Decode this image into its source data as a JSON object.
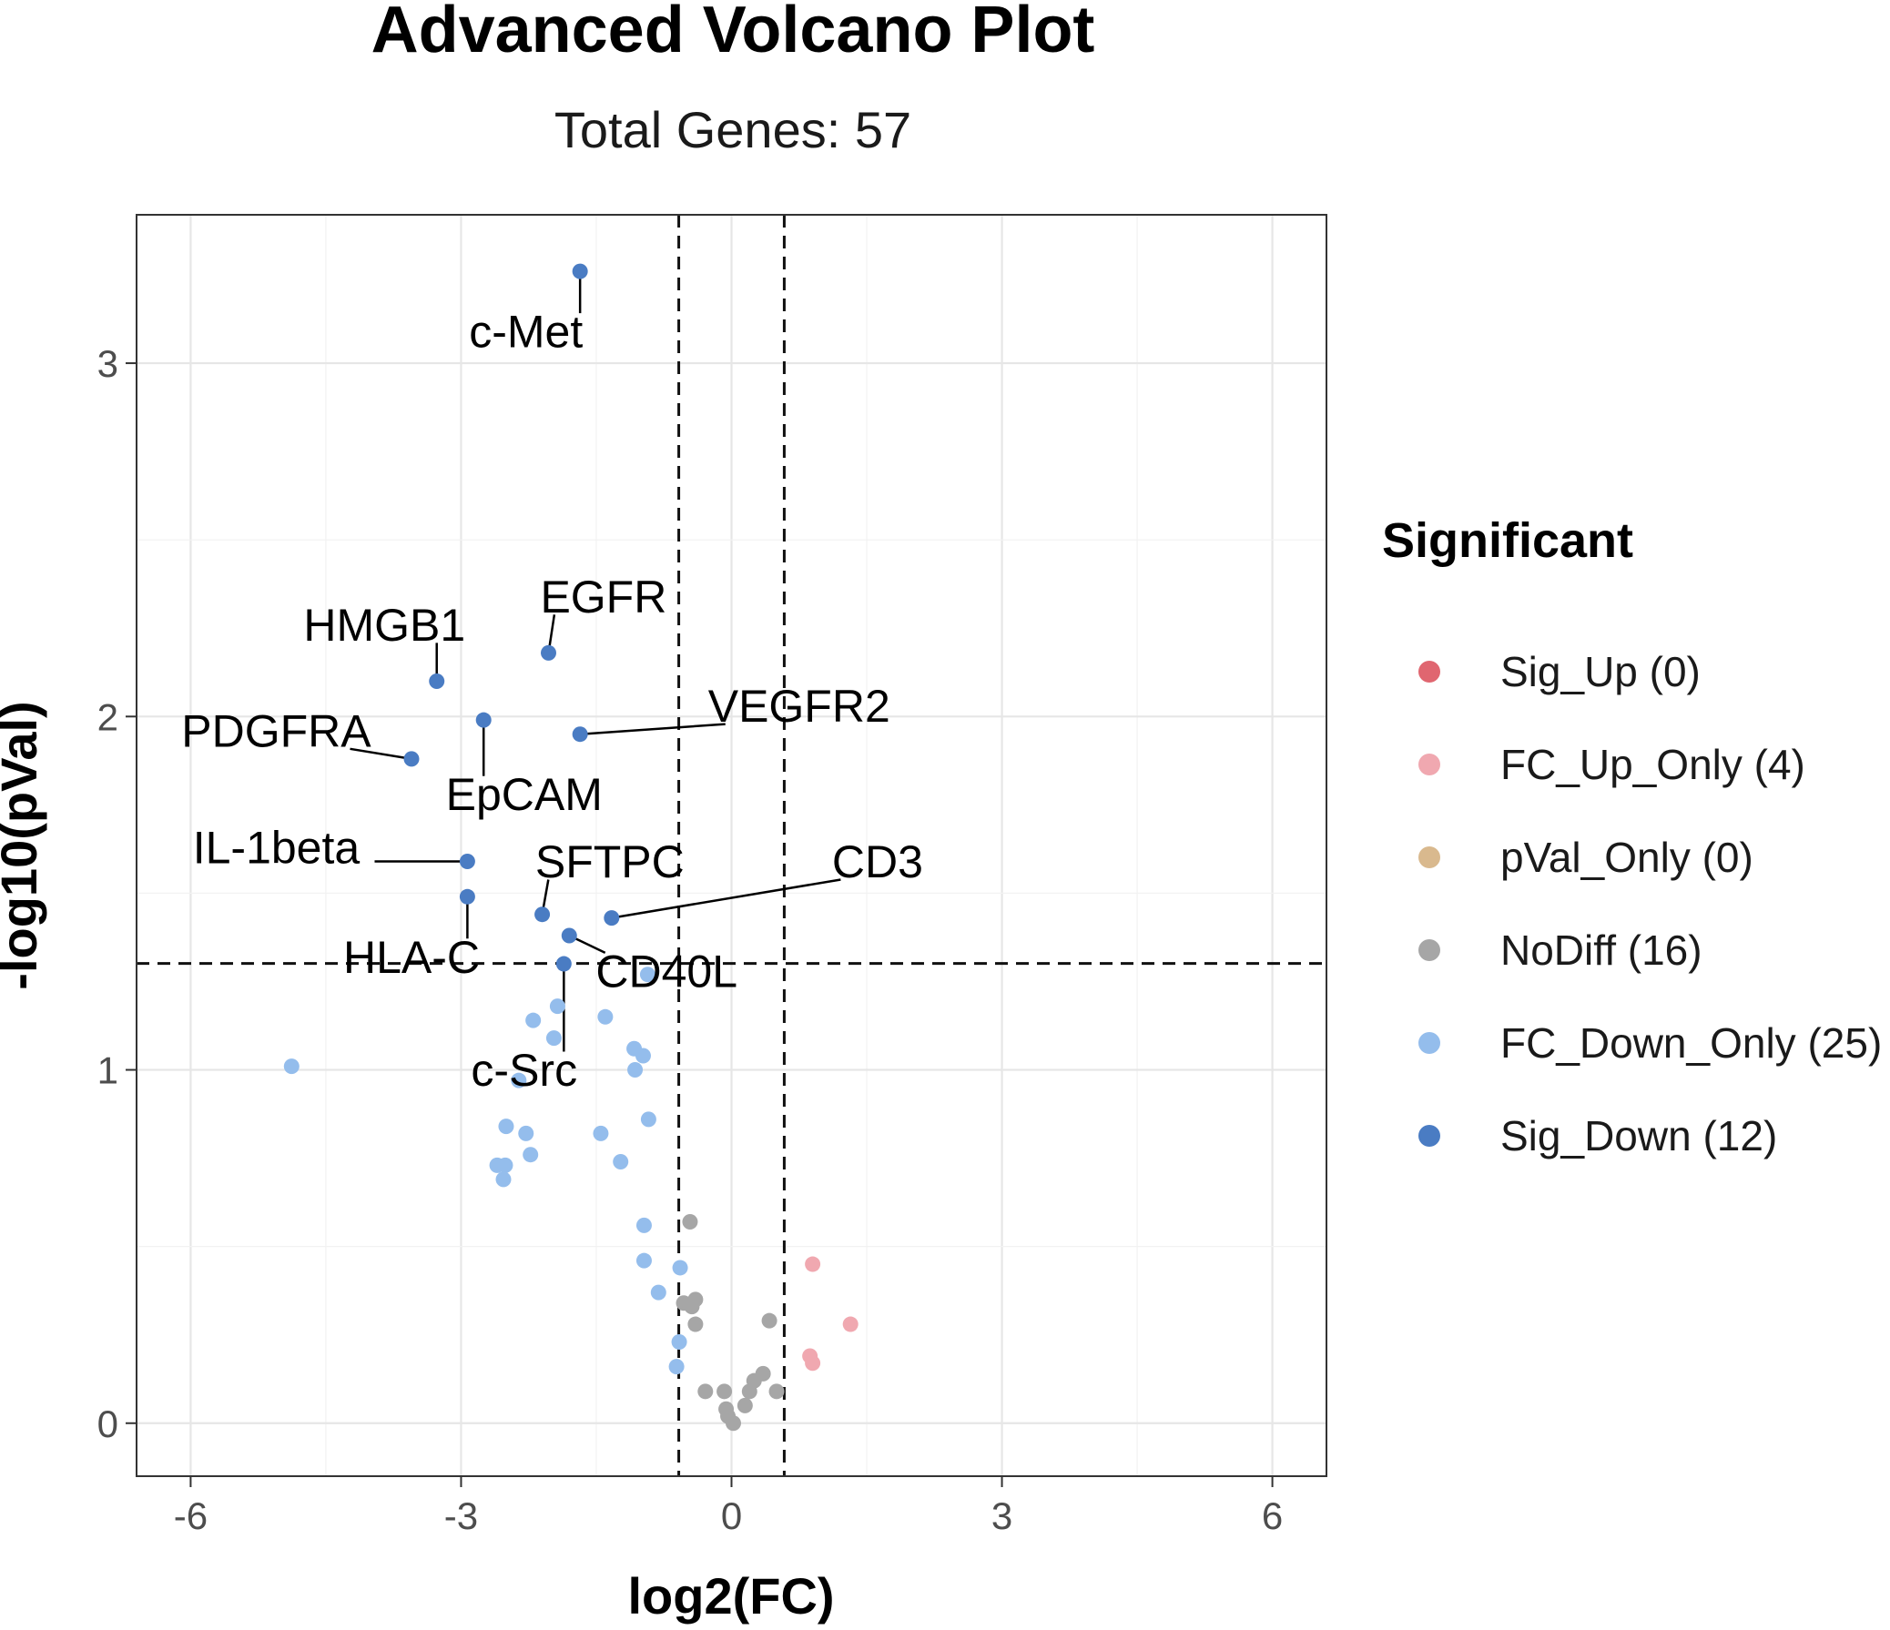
{
  "chart_data": {
    "type": "scatter",
    "title": "Advanced Volcano Plot",
    "subtitle": "Total Genes: 57",
    "xlabel": "log2(FC)",
    "ylabel": "-log10(pVal)",
    "xlim": [
      -6.6,
      6.6
    ],
    "ylim": [
      -0.15,
      3.42
    ],
    "x_ticks": [
      -6,
      -3,
      0,
      3,
      6
    ],
    "y_ticks": [
      0,
      1,
      2,
      3
    ],
    "x_tick_labels": [
      "-6",
      "-3",
      "0",
      "3",
      "6"
    ],
    "y_tick_labels": [
      "0",
      "1",
      "2",
      "3"
    ],
    "thresholds": {
      "x": [
        -0.585,
        0.585
      ],
      "y": 1.301
    },
    "grid": true,
    "legend": {
      "title": "Significant",
      "position": "right",
      "entries": [
        {
          "key": "Sig_Up",
          "label": "Sig_Up (0)",
          "color": "#E06670"
        },
        {
          "key": "FC_Up_Only",
          "label": "FC_Up_Only (4)",
          "color": "#F0A8B0"
        },
        {
          "key": "pVal_Only",
          "label": "pVal_Only (0)",
          "color": "#D9B98E"
        },
        {
          "key": "NoDiff",
          "label": "NoDiff (16)",
          "color": "#A6A6A6"
        },
        {
          "key": "FC_Down_Only",
          "label": "FC_Down_Only (25)",
          "color": "#94BDEC"
        },
        {
          "key": "Sig_Down",
          "label": "Sig_Down (12)",
          "color": "#4A7CC3"
        }
      ]
    },
    "gene_labels": {
      "c-Met": "c-Met",
      "EGFR": "EGFR",
      "HMGB1": "HMGB1",
      "VEGFR2": "VEGFR2",
      "EpCAM": "EpCAM",
      "PDGFRA": "PDGFRA",
      "IL-1beta": "IL-1beta",
      "SFTPC": "SFTPC",
      "CD3": "CD3",
      "HLA-C": "HLA-C",
      "CD40L": "CD40L",
      "c-Src": "c-Src"
    },
    "sig_down": [
      {
        "gene": "c-Met",
        "x": -1.68,
        "y": 3.26,
        "lx": -2.28,
        "ly": 3.09
      },
      {
        "gene": "EGFR",
        "x": -2.03,
        "y": 2.18,
        "lx": -1.42,
        "ly": 2.34
      },
      {
        "gene": "HMGB1",
        "x": -3.27,
        "y": 2.1,
        "lx": -3.85,
        "ly": 2.26
      },
      {
        "gene": "VEGFR2",
        "x": -1.68,
        "y": 1.95,
        "lx": 0.75,
        "ly": 2.03
      },
      {
        "gene": "EpCAM",
        "x": -2.75,
        "y": 1.99,
        "lx": -2.3,
        "ly": 1.78
      },
      {
        "gene": "PDGFRA",
        "x": -3.55,
        "y": 1.88,
        "lx": -5.05,
        "ly": 1.96
      },
      {
        "gene": "IL-1beta",
        "x": -2.93,
        "y": 1.59,
        "lx": -5.05,
        "ly": 1.63
      },
      {
        "gene": "SFTPC",
        "x": -2.1,
        "y": 1.44,
        "lx": -1.35,
        "ly": 1.59
      },
      {
        "gene": "CD3",
        "x": -1.33,
        "y": 1.43,
        "lx": 1.62,
        "ly": 1.59
      },
      {
        "gene": "HLA-C",
        "x": -2.93,
        "y": 1.49,
        "lx": -3.55,
        "ly": 1.32
      },
      {
        "gene": "CD40L",
        "x": -1.8,
        "y": 1.38,
        "lx": -0.72,
        "ly": 1.28
      },
      {
        "gene": "c-Src",
        "x": -1.86,
        "y": 1.3,
        "lx": -2.3,
        "ly": 1.0
      }
    ],
    "fc_down_only": [
      {
        "x": -4.88,
        "y": 1.01
      },
      {
        "x": -0.93,
        "y": 1.27
      },
      {
        "x": -1.93,
        "y": 1.18
      },
      {
        "x": -2.2,
        "y": 1.14
      },
      {
        "x": -1.4,
        "y": 1.15
      },
      {
        "x": -1.97,
        "y": 1.09
      },
      {
        "x": -1.08,
        "y": 1.06
      },
      {
        "x": -0.98,
        "y": 1.04
      },
      {
        "x": -1.07,
        "y": 1.0
      },
      {
        "x": -2.36,
        "y": 0.97
      },
      {
        "x": -0.92,
        "y": 0.86
      },
      {
        "x": -2.5,
        "y": 0.84
      },
      {
        "x": -2.28,
        "y": 0.82
      },
      {
        "x": -1.45,
        "y": 0.82
      },
      {
        "x": -2.23,
        "y": 0.76
      },
      {
        "x": -1.23,
        "y": 0.74
      },
      {
        "x": -2.6,
        "y": 0.73
      },
      {
        "x": -2.51,
        "y": 0.73
      },
      {
        "x": -2.53,
        "y": 0.69
      },
      {
        "x": -0.97,
        "y": 0.56
      },
      {
        "x": -0.97,
        "y": 0.46
      },
      {
        "x": -0.57,
        "y": 0.44
      },
      {
        "x": -0.81,
        "y": 0.37
      },
      {
        "x": -0.58,
        "y": 0.23
      },
      {
        "x": -0.61,
        "y": 0.16
      }
    ],
    "no_diff": [
      {
        "x": -0.46,
        "y": 0.57
      },
      {
        "x": -0.4,
        "y": 0.35
      },
      {
        "x": -0.53,
        "y": 0.34
      },
      {
        "x": -0.44,
        "y": 0.33
      },
      {
        "x": -0.4,
        "y": 0.28
      },
      {
        "x": 0.42,
        "y": 0.29
      },
      {
        "x": 0.35,
        "y": 0.14
      },
      {
        "x": 0.25,
        "y": 0.12
      },
      {
        "x": 0.2,
        "y": 0.09
      },
      {
        "x": 0.5,
        "y": 0.09
      },
      {
        "x": -0.29,
        "y": 0.09
      },
      {
        "x": -0.08,
        "y": 0.09
      },
      {
        "x": 0.15,
        "y": 0.05
      },
      {
        "x": -0.06,
        "y": 0.04
      },
      {
        "x": -0.04,
        "y": 0.02
      },
      {
        "x": 0.02,
        "y": 0.0
      }
    ],
    "fc_up_only": [
      {
        "x": 0.9,
        "y": 0.45
      },
      {
        "x": 1.32,
        "y": 0.28
      },
      {
        "x": 0.87,
        "y": 0.19
      },
      {
        "x": 0.9,
        "y": 0.17
      }
    ]
  }
}
